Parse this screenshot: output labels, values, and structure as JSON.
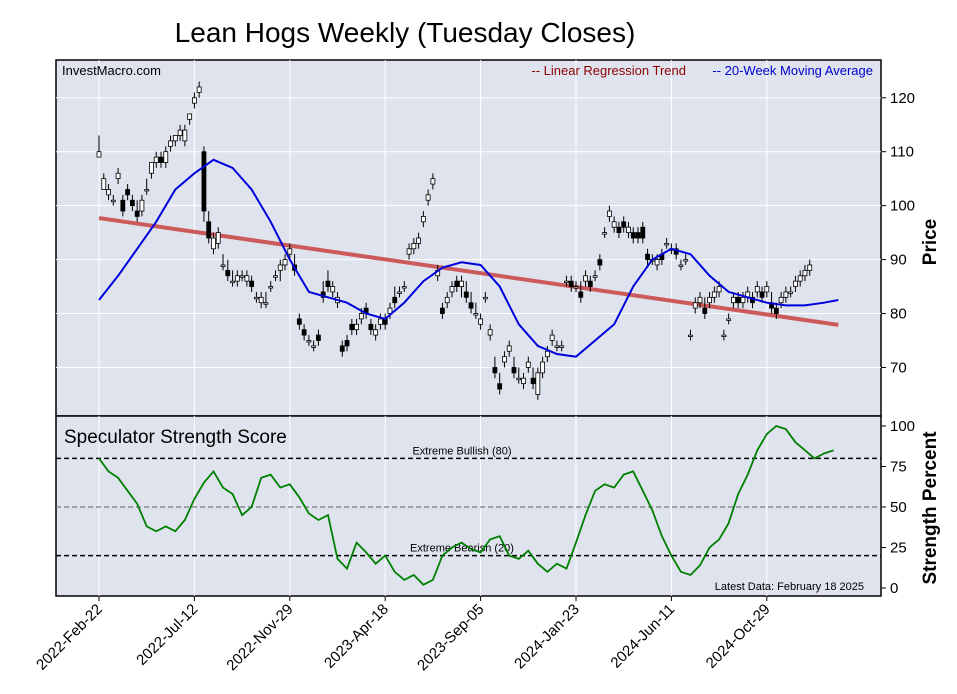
{
  "title": "Lean Hogs Weekly (Tuesday Closes)",
  "watermark": "InvestMacro.com",
  "colors": {
    "panel_bg": "#dfe3ee",
    "regression": "#cc5a5a",
    "ma": "#0000dd",
    "strength": "#008000",
    "legend_regression": "#8b0000",
    "legend_ma": "#0000cc"
  },
  "chart_data": [
    {
      "type": "candlestick",
      "legend": {
        "regression": "-- Linear Regression Trend",
        "ma": "-- 20-Week Moving Average"
      },
      "ylabel": "Price",
      "ylim": [
        61,
        127
      ],
      "yticks": [
        70,
        80,
        90,
        100,
        110,
        120
      ],
      "x_date_labels": [
        "2022-Feb-22",
        "2022-Jul-12",
        "2022-Nov-29",
        "2023-Apr-18",
        "2023-Sep-05",
        "2024-Jan-23",
        "2024-Jun-11",
        "2024-Oct-29"
      ],
      "x_label_index": [
        0,
        20,
        40,
        60,
        80,
        100,
        120,
        140
      ],
      "regression_line": {
        "x": [
          0,
          155
        ],
        "y": [
          97.7,
          77.9
        ]
      },
      "moving_average": {
        "x": [
          0,
          4,
          8,
          12,
          16,
          20,
          24,
          28,
          32,
          36,
          40,
          44,
          48,
          52,
          56,
          60,
          64,
          68,
          72,
          76,
          80,
          84,
          88,
          92,
          96,
          100,
          104,
          108,
          112,
          116,
          120,
          124,
          128,
          132,
          136,
          140,
          144,
          148,
          152,
          155
        ],
        "y": [
          82.5,
          87,
          92,
          97,
          103,
          106,
          108.5,
          107,
          103,
          97,
          90,
          84,
          83,
          82,
          80,
          79,
          82,
          86,
          88.5,
          89.5,
          89,
          85,
          78,
          74,
          72.5,
          72,
          75,
          78,
          85,
          90,
          92,
          91,
          87,
          84,
          83,
          82,
          81.5,
          81.5,
          82,
          82.5
        ]
      },
      "candles": [
        [
          0,
          109,
          113,
          109,
          110
        ],
        [
          1,
          103,
          106,
          103,
          105
        ],
        [
          2,
          102,
          104,
          101,
          103
        ],
        [
          3,
          101,
          102,
          100,
          101
        ],
        [
          4,
          105,
          107,
          104,
          106
        ],
        [
          5,
          101,
          102,
          98,
          99
        ],
        [
          6,
          103,
          104,
          101,
          102
        ],
        [
          7,
          101,
          102,
          99,
          100
        ],
        [
          8,
          99,
          101,
          97,
          98
        ],
        [
          9,
          99,
          102,
          98,
          101
        ],
        [
          10,
          103,
          105,
          102,
          103
        ],
        [
          11,
          106,
          108,
          105,
          108
        ],
        [
          12,
          108,
          110,
          107,
          109
        ],
        [
          13,
          109,
          110,
          107,
          108
        ],
        [
          14,
          108,
          111,
          107,
          110
        ],
        [
          15,
          111,
          113,
          110,
          112
        ],
        [
          16,
          112,
          113,
          111,
          113
        ],
        [
          17,
          113,
          115,
          112,
          114
        ],
        [
          18,
          112,
          115,
          111,
          114
        ],
        [
          19,
          116,
          117,
          115,
          117
        ],
        [
          20,
          119,
          121,
          118,
          120
        ],
        [
          21,
          121,
          123,
          120,
          122
        ],
        [
          22,
          110,
          111,
          97,
          99
        ],
        [
          23,
          97,
          99,
          93,
          94
        ],
        [
          24,
          92,
          95,
          91,
          94
        ],
        [
          25,
          93,
          96,
          92,
          95
        ],
        [
          26,
          89,
          91,
          88,
          89
        ],
        [
          27,
          88,
          90,
          86,
          87
        ],
        [
          28,
          86,
          88,
          85,
          86
        ],
        [
          29,
          86,
          88,
          85,
          87
        ],
        [
          30,
          87,
          88,
          86,
          87
        ],
        [
          31,
          86,
          88,
          85,
          87
        ],
        [
          32,
          86,
          87,
          84,
          85
        ],
        [
          33,
          83,
          84,
          82,
          83
        ],
        [
          34,
          82,
          84,
          81,
          83
        ],
        [
          35,
          82,
          84,
          81,
          82
        ],
        [
          36,
          85,
          86,
          84,
          85
        ],
        [
          37,
          87,
          88,
          86,
          87
        ],
        [
          38,
          88,
          90,
          86,
          89
        ],
        [
          39,
          89,
          91,
          88,
          90
        ],
        [
          40,
          91,
          93,
          90,
          92
        ],
        [
          41,
          89,
          91,
          87,
          88
        ],
        [
          42,
          79,
          80,
          77,
          78
        ],
        [
          43,
          77,
          78,
          75,
          76
        ],
        [
          44,
          75,
          76,
          74,
          75
        ],
        [
          45,
          74,
          75,
          73,
          74
        ],
        [
          46,
          76,
          77,
          74,
          75
        ],
        [
          47,
          84,
          86,
          82,
          83
        ],
        [
          48,
          86,
          88,
          84,
          85
        ],
        [
          49,
          84,
          86,
          83,
          85
        ],
        [
          50,
          82,
          84,
          81,
          83
        ],
        [
          51,
          74,
          75,
          72,
          73
        ],
        [
          52,
          75,
          76,
          73,
          74
        ],
        [
          53,
          78,
          79,
          76,
          77
        ],
        [
          54,
          77,
          79,
          76,
          78
        ],
        [
          55,
          79,
          81,
          78,
          80
        ],
        [
          56,
          81,
          82,
          79,
          80
        ],
        [
          57,
          78,
          79,
          76,
          77
        ],
        [
          58,
          76,
          78,
          75,
          77
        ],
        [
          59,
          78,
          80,
          77,
          79
        ],
        [
          60,
          79,
          80,
          77,
          78
        ],
        [
          61,
          80,
          82,
          79,
          81
        ],
        [
          62,
          83,
          85,
          81,
          82
        ],
        [
          63,
          84,
          85,
          83,
          84
        ],
        [
          64,
          85,
          86,
          84,
          85
        ],
        [
          65,
          91,
          93,
          90,
          92
        ],
        [
          66,
          92,
          94,
          91,
          93
        ],
        [
          67,
          93,
          95,
          92,
          94
        ],
        [
          68,
          97,
          99,
          96,
          98
        ],
        [
          69,
          101,
          103,
          100,
          102
        ],
        [
          70,
          104,
          106,
          103,
          105
        ],
        [
          71,
          87,
          89,
          86,
          88
        ],
        [
          72,
          81,
          82,
          79,
          80
        ],
        [
          73,
          82,
          84,
          81,
          83
        ],
        [
          74,
          84,
          86,
          83,
          85
        ],
        [
          75,
          86,
          87,
          84,
          85
        ],
        [
          76,
          85,
          87,
          83,
          86
        ],
        [
          77,
          84,
          86,
          82,
          83
        ],
        [
          78,
          82,
          84,
          80,
          81
        ],
        [
          79,
          80,
          82,
          79,
          80
        ],
        [
          80,
          78,
          80,
          77,
          79
        ],
        [
          81,
          83,
          84,
          82,
          83
        ],
        [
          82,
          76,
          78,
          75,
          77
        ],
        [
          83,
          70,
          72,
          68,
          69
        ],
        [
          84,
          67,
          69,
          65,
          66
        ],
        [
          85,
          71,
          73,
          70,
          72
        ],
        [
          86,
          73,
          75,
          72,
          74
        ],
        [
          87,
          70,
          72,
          68,
          69
        ],
        [
          88,
          68,
          70,
          67,
          68
        ],
        [
          89,
          67,
          69,
          66,
          68
        ],
        [
          90,
          70,
          72,
          69,
          71
        ],
        [
          91,
          68,
          70,
          66,
          67
        ],
        [
          92,
          65,
          70,
          64,
          69
        ],
        [
          93,
          69,
          72,
          68,
          71
        ],
        [
          94,
          72,
          74,
          71,
          73
        ],
        [
          95,
          75,
          77,
          74,
          76
        ],
        [
          96,
          74,
          75,
          73,
          74
        ],
        [
          97,
          74,
          75,
          73,
          74
        ],
        [
          98,
          86,
          87,
          85,
          86
        ],
        [
          99,
          86,
          87,
          84,
          85
        ],
        [
          100,
          85,
          86,
          84,
          85
        ],
        [
          101,
          84,
          86,
          82,
          83
        ],
        [
          102,
          86,
          88,
          85,
          87
        ],
        [
          103,
          86,
          87,
          84,
          85
        ],
        [
          104,
          87,
          88,
          86,
          87
        ],
        [
          105,
          90,
          91,
          88,
          89
        ],
        [
          106,
          95,
          96,
          94,
          95
        ],
        [
          107,
          98,
          100,
          97,
          99
        ],
        [
          108,
          96,
          98,
          95,
          97
        ],
        [
          109,
          96,
          97,
          94,
          95
        ],
        [
          110,
          97,
          98,
          95,
          96
        ],
        [
          111,
          95,
          97,
          94,
          96
        ],
        [
          112,
          95,
          96,
          93,
          94
        ],
        [
          113,
          95,
          96,
          93,
          94
        ],
        [
          114,
          96,
          97,
          93,
          94
        ],
        [
          115,
          91,
          92,
          89,
          90
        ],
        [
          116,
          90,
          91,
          89,
          90
        ],
        [
          117,
          89,
          91,
          88,
          90
        ],
        [
          118,
          91,
          92,
          89,
          90
        ],
        [
          119,
          93,
          94,
          92,
          93
        ],
        [
          120,
          92,
          93,
          91,
          92
        ],
        [
          121,
          92,
          93,
          90,
          91
        ],
        [
          122,
          89,
          90,
          88,
          89
        ],
        [
          123,
          90,
          91,
          89,
          90
        ],
        [
          124,
          76,
          77,
          75,
          76
        ],
        [
          125,
          81,
          83,
          80,
          82
        ],
        [
          126,
          82,
          84,
          81,
          83
        ],
        [
          127,
          81,
          83,
          79,
          80
        ],
        [
          128,
          82,
          84,
          81,
          83
        ],
        [
          129,
          83,
          85,
          82,
          84
        ],
        [
          130,
          84,
          86,
          83,
          85
        ],
        [
          131,
          76,
          77,
          75,
          76
        ],
        [
          132,
          79,
          80,
          78,
          79
        ],
        [
          133,
          82,
          84,
          81,
          83
        ],
        [
          134,
          83,
          84,
          81,
          82
        ],
        [
          135,
          82,
          84,
          81,
          83
        ],
        [
          136,
          83,
          85,
          82,
          84
        ],
        [
          137,
          83,
          84,
          81,
          82
        ],
        [
          138,
          84,
          86,
          83,
          85
        ],
        [
          139,
          84,
          85,
          82,
          83
        ],
        [
          140,
          84,
          86,
          83,
          85
        ],
        [
          141,
          82,
          84,
          80,
          81
        ],
        [
          142,
          81,
          82,
          79,
          80
        ],
        [
          143,
          82,
          84,
          81,
          83
        ],
        [
          144,
          83,
          85,
          82,
          84
        ],
        [
          145,
          84,
          85,
          83,
          84
        ],
        [
          146,
          85,
          87,
          84,
          86
        ],
        [
          147,
          86,
          88,
          85,
          87
        ],
        [
          148,
          87,
          89,
          86,
          88
        ],
        [
          149,
          88,
          90,
          87,
          89
        ]
      ]
    },
    {
      "type": "line",
      "title": "Speculator Strength Score",
      "ylabel": "Strength Percent",
      "ylim": [
        0,
        100
      ],
      "yticks": [
        0,
        25,
        50,
        75,
        100
      ],
      "reference_lines": [
        {
          "label": "Extreme Bullish (80)",
          "value": 80
        },
        {
          "label": "Extreme Bearish (20)",
          "value": 20
        }
      ],
      "midline": 50,
      "series": [
        {
          "x": [
            0,
            2,
            4,
            6,
            8,
            10,
            12,
            14,
            16,
            18,
            20,
            22,
            24,
            26,
            28,
            30,
            32,
            34,
            36,
            38,
            40,
            42,
            44,
            46,
            48,
            50,
            52,
            54,
            56,
            58,
            60,
            62,
            64,
            66,
            68,
            70,
            72,
            74,
            76,
            78,
            80,
            82,
            84,
            86,
            88,
            90,
            92,
            94,
            96,
            98,
            100,
            102,
            104,
            106,
            108,
            110,
            112,
            114,
            116,
            118,
            120,
            122,
            124,
            126,
            128,
            130,
            132,
            134,
            136,
            138,
            140,
            142,
            144,
            146,
            148,
            150,
            152,
            154
          ],
          "values": [
            80,
            72,
            68,
            60,
            52,
            38,
            35,
            38,
            35,
            42,
            55,
            65,
            72,
            62,
            58,
            45,
            50,
            68,
            70,
            62,
            64,
            56,
            46,
            42,
            45,
            18,
            12,
            28,
            22,
            15,
            20,
            10,
            5,
            8,
            2,
            5,
            20,
            25,
            28,
            24,
            22,
            30,
            32,
            20,
            18,
            23,
            15,
            10,
            15,
            12,
            28,
            45,
            60,
            64,
            62,
            70,
            72,
            60,
            48,
            32,
            20,
            10,
            8,
            14,
            25,
            30,
            40,
            58,
            70,
            85,
            95,
            100,
            98,
            90,
            85,
            80,
            83,
            85
          ]
        }
      ],
      "footer_note": "Latest Data: February 18 2025"
    }
  ]
}
